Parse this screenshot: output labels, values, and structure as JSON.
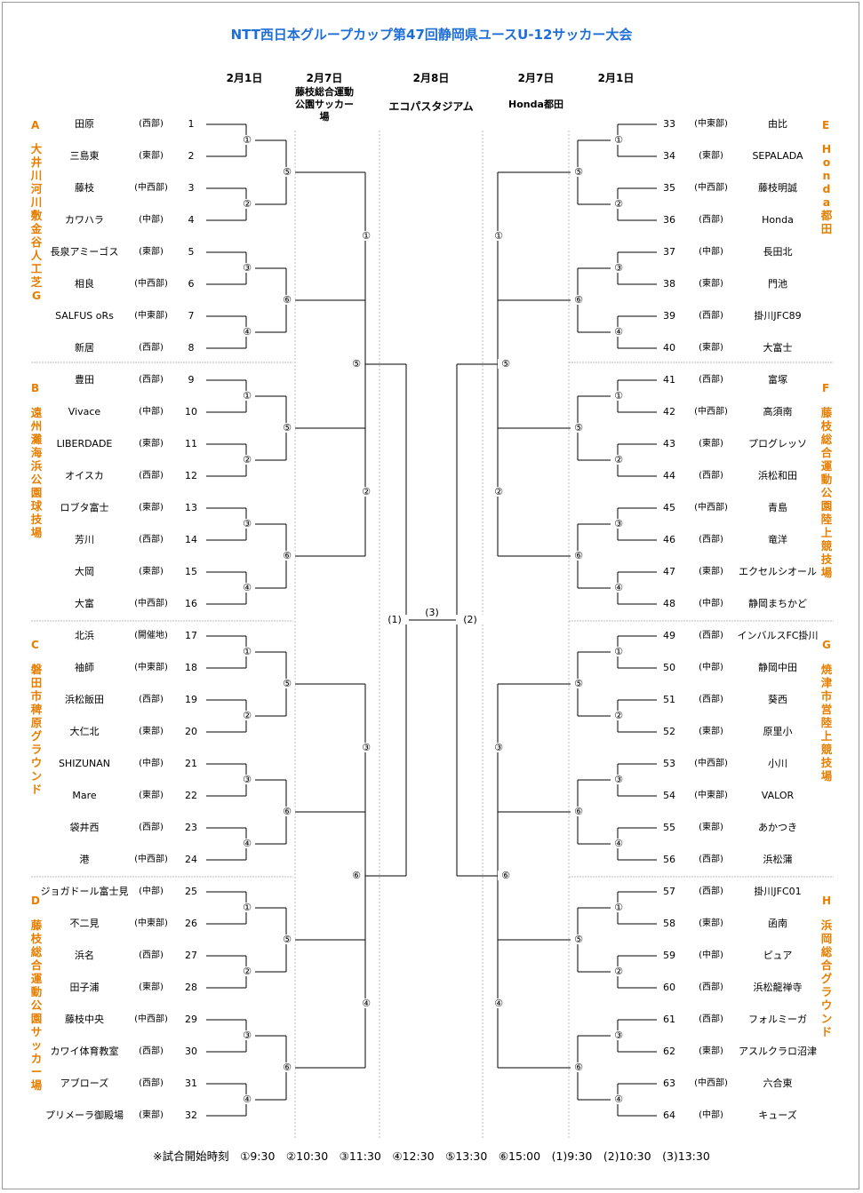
{
  "title": "NTT西日本グループカップ第47回静岡県ユースU-12サッカー大会",
  "headers": {
    "l1": "2月1日",
    "l2": "2月7日",
    "l2_venue": [
      "藤枝総合運動",
      "公園サッカー",
      "場"
    ],
    "c": "2月8日",
    "c_venue": "エコパスタジアム",
    "r2": "2月7日",
    "r2_venue": "Honda都田",
    "r1": "2月1日"
  },
  "groups": [
    {
      "letter": "A",
      "venue": "大井川河川敷金谷人工芝G"
    },
    {
      "letter": "B",
      "venue": "遠州灘海浜公園球技場"
    },
    {
      "letter": "C",
      "venue": "磐田市稗原グラウンド"
    },
    {
      "letter": "D",
      "venue": "藤枝総合運動公園サッカー場"
    },
    {
      "letter": "E",
      "venue": "Honda都田"
    },
    {
      "letter": "F",
      "venue": "藤枝総合運動公園陸上競技場"
    },
    {
      "letter": "G",
      "venue": "焼津市営陸上競技場"
    },
    {
      "letter": "H",
      "venue": "浜岡総合グラウンド"
    }
  ],
  "teams_left": [
    {
      "n": "1",
      "name": "田原",
      "region": "(西部)"
    },
    {
      "n": "2",
      "name": "三島東",
      "region": "(東部)"
    },
    {
      "n": "3",
      "name": "藤枝",
      "region": "(中西部)"
    },
    {
      "n": "4",
      "name": "カワハラ",
      "region": "(中部)"
    },
    {
      "n": "5",
      "name": "長泉アミーゴス",
      "region": "(東部)"
    },
    {
      "n": "6",
      "name": "相良",
      "region": "(中西部)"
    },
    {
      "n": "7",
      "name": "SALFUS oRs",
      "region": "(中東部)"
    },
    {
      "n": "8",
      "name": "新居",
      "region": "(西部)"
    },
    {
      "n": "9",
      "name": "豊田",
      "region": "(西部)"
    },
    {
      "n": "10",
      "name": "Vivace",
      "region": "(中部)"
    },
    {
      "n": "11",
      "name": "LIBERDADE",
      "region": "(東部)"
    },
    {
      "n": "12",
      "name": "オイスカ",
      "region": "(西部)"
    },
    {
      "n": "13",
      "name": "ロブタ富士",
      "region": "(東部)"
    },
    {
      "n": "14",
      "name": "芳川",
      "region": "(西部)"
    },
    {
      "n": "15",
      "name": "大岡",
      "region": "(東部)"
    },
    {
      "n": "16",
      "name": "大富",
      "region": "(中西部)"
    },
    {
      "n": "17",
      "name": "北浜",
      "region": "(開催地)"
    },
    {
      "n": "18",
      "name": "袖師",
      "region": "(中東部)"
    },
    {
      "n": "19",
      "name": "浜松飯田",
      "region": "(西部)"
    },
    {
      "n": "20",
      "name": "大仁北",
      "region": "(東部)"
    },
    {
      "n": "21",
      "name": "SHIZUNAN",
      "region": "(中部)"
    },
    {
      "n": "22",
      "name": "Mare",
      "region": "(東部)"
    },
    {
      "n": "23",
      "name": "袋井西",
      "region": "(西部)"
    },
    {
      "n": "24",
      "name": "港",
      "region": "(中西部)"
    },
    {
      "n": "25",
      "name": "ジョガドール富士見",
      "region": "(中部)"
    },
    {
      "n": "26",
      "name": "不二見",
      "region": "(中東部)"
    },
    {
      "n": "27",
      "name": "浜名",
      "region": "(西部)"
    },
    {
      "n": "28",
      "name": "田子浦",
      "region": "(東部)"
    },
    {
      "n": "29",
      "name": "藤枝中央",
      "region": "(中西部)"
    },
    {
      "n": "30",
      "name": "カワイ体育教室",
      "region": "(西部)"
    },
    {
      "n": "31",
      "name": "アブローズ",
      "region": "(西部)"
    },
    {
      "n": "32",
      "name": "プリメーラ御殿場",
      "region": "(東部)"
    }
  ],
  "teams_right": [
    {
      "n": "33",
      "name": "由比",
      "region": "(中東部)"
    },
    {
      "n": "34",
      "name": "SEPALADA",
      "region": "(東部)"
    },
    {
      "n": "35",
      "name": "藤枝明誠",
      "region": "(中西部)"
    },
    {
      "n": "36",
      "name": "Honda",
      "region": "(西部)"
    },
    {
      "n": "37",
      "name": "長田北",
      "region": "(中部)"
    },
    {
      "n": "38",
      "name": "門池",
      "region": "(東部)"
    },
    {
      "n": "39",
      "name": "掛川JFC89",
      "region": "(西部)"
    },
    {
      "n": "40",
      "name": "大富士",
      "region": "(東部)"
    },
    {
      "n": "41",
      "name": "富塚",
      "region": "(西部)"
    },
    {
      "n": "42",
      "name": "高須南",
      "region": "(中西部)"
    },
    {
      "n": "43",
      "name": "プログレッソ",
      "region": "(東部)"
    },
    {
      "n": "44",
      "name": "浜松和田",
      "region": "(西部)"
    },
    {
      "n": "45",
      "name": "青島",
      "region": "(中西部)"
    },
    {
      "n": "46",
      "name": "竜洋",
      "region": "(西部)"
    },
    {
      "n": "47",
      "name": "エクセルシオール",
      "region": "(東部)"
    },
    {
      "n": "48",
      "name": "静岡まちかど",
      "region": "(中部)"
    },
    {
      "n": "49",
      "name": "インバルスFC掛川",
      "region": "(西部)"
    },
    {
      "n": "50",
      "name": "静岡中田",
      "region": "(中部)"
    },
    {
      "n": "51",
      "name": "葵西",
      "region": "(西部)"
    },
    {
      "n": "52",
      "name": "原里小",
      "region": "(東部)"
    },
    {
      "n": "53",
      "name": "小川",
      "region": "(中西部)"
    },
    {
      "n": "54",
      "name": "VALOR",
      "region": "(中東部)"
    },
    {
      "n": "55",
      "name": "あかつき",
      "region": "(東部)"
    },
    {
      "n": "56",
      "name": "浜松蒲",
      "region": "(西部)"
    },
    {
      "n": "57",
      "name": "掛川JFC01",
      "region": "(西部)"
    },
    {
      "n": "58",
      "name": "函南",
      "region": "(東部)"
    },
    {
      "n": "59",
      "name": "ピュア",
      "region": "(中部)"
    },
    {
      "n": "60",
      "name": "浜松龍禅寺",
      "region": "(西部)"
    },
    {
      "n": "61",
      "name": "フォルミーガ",
      "region": "(西部)"
    },
    {
      "n": "62",
      "name": "アスルクラロ沼津",
      "region": "(東部)"
    },
    {
      "n": "63",
      "name": "六合東",
      "region": "(中西部)"
    },
    {
      "n": "64",
      "name": "キューズ",
      "region": "(中部)"
    }
  ],
  "match_labels": {
    "r1": [
      "①",
      "②",
      "③",
      "④"
    ],
    "r2": [
      "⑤",
      "⑥"
    ],
    "r3": [
      "①",
      "②",
      "③",
      "④"
    ],
    "r4": [
      "⑤",
      "⑥"
    ],
    "semi_left": "(1)",
    "semi_right": "(2)",
    "final": "(3)"
  },
  "footer": "※試合開始時刻　①9:30　②10:30　③11:30　④12:30　⑤13:30　⑥15:00　(1)9:30　(2)10:30　(3)13:30"
}
